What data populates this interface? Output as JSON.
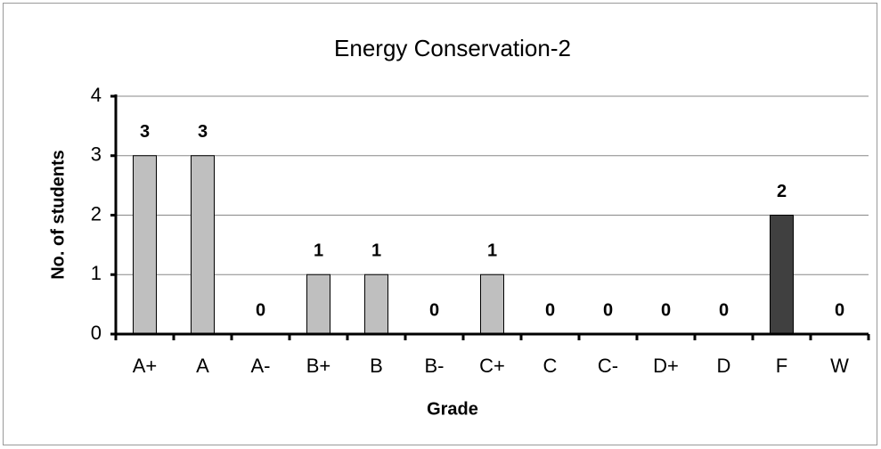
{
  "chart_data": {
    "type": "bar",
    "title": "Energy Conservation-2",
    "xlabel": "Grade",
    "ylabel": "No. of students",
    "categories": [
      "A+",
      "A",
      "A-",
      "B+",
      "B",
      "B-",
      "C+",
      "C",
      "C-",
      "D+",
      "D",
      "F",
      "W"
    ],
    "values": [
      3,
      3,
      0,
      1,
      1,
      0,
      1,
      0,
      0,
      0,
      0,
      2,
      0
    ],
    "colors": [
      "#bfbfbf",
      "#bfbfbf",
      "#bfbfbf",
      "#bfbfbf",
      "#bfbfbf",
      "#bfbfbf",
      "#bfbfbf",
      "#bfbfbf",
      "#bfbfbf",
      "#bfbfbf",
      "#bfbfbf",
      "#404040",
      "#bfbfbf"
    ],
    "ylim": [
      0,
      4
    ],
    "yticks": [
      0,
      1,
      2,
      3,
      4
    ],
    "grid": true
  }
}
